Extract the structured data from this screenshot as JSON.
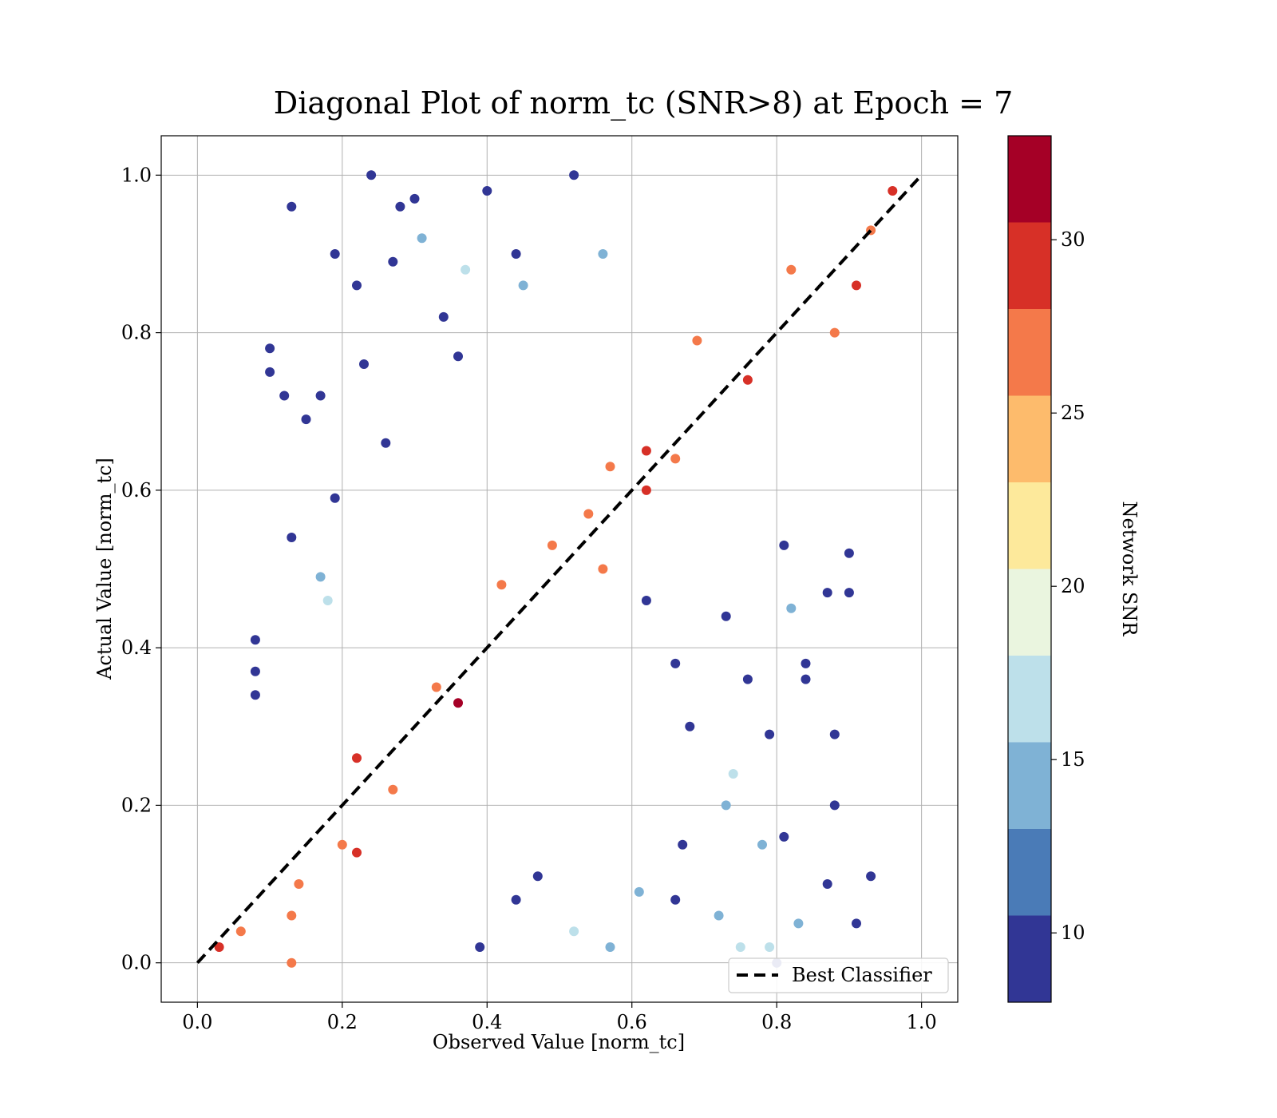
{
  "chart_data": {
    "type": "scatter",
    "title": "Diagonal Plot of norm_tc (SNR>8) at Epoch = 7",
    "xlabel": "Observed Value [norm_tc]",
    "ylabel": "Actual Value [norm_tc]",
    "xlim": [
      -0.05,
      1.05
    ],
    "ylim": [
      -0.05,
      1.05
    ],
    "xticks": [
      "0.0",
      "0.2",
      "0.4",
      "0.6",
      "0.8",
      "1.0"
    ],
    "yticks": [
      "0.0",
      "0.2",
      "0.4",
      "0.6",
      "0.8",
      "1.0"
    ],
    "grid": true,
    "legend": {
      "label": "Best Classifier",
      "placement": "lower-right"
    },
    "reference_line": {
      "name": "Best Classifier",
      "x": [
        0,
        1
      ],
      "y": [
        0,
        1
      ],
      "style": "dashed",
      "color": "#000000"
    },
    "colorbar": {
      "label": "Network SNR",
      "range": [
        8,
        33
      ],
      "ticks": [
        "10",
        "15",
        "20",
        "25",
        "30"
      ],
      "bins": [
        {
          "from": 8,
          "to": 10.5,
          "color": "#313695"
        },
        {
          "from": 10.5,
          "to": 13,
          "color": "#4a7bb7"
        },
        {
          "from": 13,
          "to": 15.5,
          "color": "#7fb2d5"
        },
        {
          "from": 15.5,
          "to": 18,
          "color": "#bde0ea"
        },
        {
          "from": 18,
          "to": 20.5,
          "color": "#eaf5df"
        },
        {
          "from": 20.5,
          "to": 23,
          "color": "#fde99b"
        },
        {
          "from": 23,
          "to": 25.5,
          "color": "#fdbb6c"
        },
        {
          "from": 25.5,
          "to": 28,
          "color": "#f4794a"
        },
        {
          "from": 28,
          "to": 30.5,
          "color": "#d73027"
        },
        {
          "from": 30.5,
          "to": 33,
          "color": "#a50026"
        }
      ]
    },
    "points": [
      {
        "x": 0.13,
        "y": 0.96,
        "snr": 9
      },
      {
        "x": 0.1,
        "y": 0.78,
        "snr": 9
      },
      {
        "x": 0.1,
        "y": 0.75,
        "snr": 9
      },
      {
        "x": 0.12,
        "y": 0.72,
        "snr": 9
      },
      {
        "x": 0.17,
        "y": 0.72,
        "snr": 9
      },
      {
        "x": 0.19,
        "y": 0.9,
        "snr": 9
      },
      {
        "x": 0.22,
        "y": 0.86,
        "snr": 9
      },
      {
        "x": 0.23,
        "y": 0.76,
        "snr": 9
      },
      {
        "x": 0.24,
        "y": 1.0,
        "snr": 9
      },
      {
        "x": 0.27,
        "y": 0.89,
        "snr": 9
      },
      {
        "x": 0.28,
        "y": 0.96,
        "snr": 9
      },
      {
        "x": 0.3,
        "y": 0.97,
        "snr": 9
      },
      {
        "x": 0.31,
        "y": 0.92,
        "snr": 14
      },
      {
        "x": 0.37,
        "y": 0.88,
        "snr": 16
      },
      {
        "x": 0.4,
        "y": 0.98,
        "snr": 9
      },
      {
        "x": 0.44,
        "y": 0.9,
        "snr": 9
      },
      {
        "x": 0.52,
        "y": 1.0,
        "snr": 9
      },
      {
        "x": 0.56,
        "y": 0.9,
        "snr": 14
      },
      {
        "x": 0.13,
        "y": 0.54,
        "snr": 9
      },
      {
        "x": 0.15,
        "y": 0.69,
        "snr": 9
      },
      {
        "x": 0.19,
        "y": 0.59,
        "snr": 9
      },
      {
        "x": 0.08,
        "y": 0.41,
        "snr": 9
      },
      {
        "x": 0.08,
        "y": 0.37,
        "snr": 9
      },
      {
        "x": 0.08,
        "y": 0.34,
        "snr": 9
      },
      {
        "x": 0.17,
        "y": 0.49,
        "snr": 14
      },
      {
        "x": 0.18,
        "y": 0.46,
        "snr": 16
      },
      {
        "x": 0.26,
        "y": 0.66,
        "snr": 9
      },
      {
        "x": 0.34,
        "y": 0.82,
        "snr": 9
      },
      {
        "x": 0.36,
        "y": 0.77,
        "snr": 9
      },
      {
        "x": 0.45,
        "y": 0.86,
        "snr": 14
      },
      {
        "x": 0.62,
        "y": 0.46,
        "snr": 9
      },
      {
        "x": 0.66,
        "y": 0.38,
        "snr": 9
      },
      {
        "x": 0.68,
        "y": 0.3,
        "snr": 9
      },
      {
        "x": 0.73,
        "y": 0.44,
        "snr": 9
      },
      {
        "x": 0.76,
        "y": 0.36,
        "snr": 9
      },
      {
        "x": 0.79,
        "y": 0.29,
        "snr": 9
      },
      {
        "x": 0.82,
        "y": 0.45,
        "snr": 14
      },
      {
        "x": 0.84,
        "y": 0.38,
        "snr": 9
      },
      {
        "x": 0.84,
        "y": 0.36,
        "snr": 9
      },
      {
        "x": 0.88,
        "y": 0.29,
        "snr": 9
      },
      {
        "x": 0.88,
        "y": 0.2,
        "snr": 9
      },
      {
        "x": 0.9,
        "y": 0.52,
        "snr": 9
      },
      {
        "x": 0.9,
        "y": 0.47,
        "snr": 9
      },
      {
        "x": 0.87,
        "y": 0.47,
        "snr": 9
      },
      {
        "x": 0.81,
        "y": 0.53,
        "snr": 9
      },
      {
        "x": 0.93,
        "y": 0.11,
        "snr": 9
      },
      {
        "x": 0.91,
        "y": 0.05,
        "snr": 9
      },
      {
        "x": 0.87,
        "y": 0.1,
        "snr": 9
      },
      {
        "x": 0.83,
        "y": 0.05,
        "snr": 14
      },
      {
        "x": 0.78,
        "y": 0.15,
        "snr": 14
      },
      {
        "x": 0.81,
        "y": 0.16,
        "snr": 9
      },
      {
        "x": 0.8,
        "y": 0.0,
        "snr": 9
      },
      {
        "x": 0.79,
        "y": 0.02,
        "snr": 16
      },
      {
        "x": 0.74,
        "y": 0.24,
        "snr": 16
      },
      {
        "x": 0.73,
        "y": 0.2,
        "snr": 14
      },
      {
        "x": 0.67,
        "y": 0.15,
        "snr": 9
      },
      {
        "x": 0.66,
        "y": 0.08,
        "snr": 9
      },
      {
        "x": 0.72,
        "y": 0.06,
        "snr": 14
      },
      {
        "x": 0.75,
        "y": 0.02,
        "snr": 16
      },
      {
        "x": 0.57,
        "y": 0.02,
        "snr": 14
      },
      {
        "x": 0.44,
        "y": 0.08,
        "snr": 9
      },
      {
        "x": 0.47,
        "y": 0.11,
        "snr": 9
      },
      {
        "x": 0.39,
        "y": 0.02,
        "snr": 9
      },
      {
        "x": 0.52,
        "y": 0.04,
        "snr": 16
      },
      {
        "x": 0.61,
        "y": 0.09,
        "snr": 14
      },
      {
        "x": 0.96,
        "y": 0.98,
        "snr": 29
      },
      {
        "x": 0.91,
        "y": 0.86,
        "snr": 29
      },
      {
        "x": 0.88,
        "y": 0.8,
        "snr": 27
      },
      {
        "x": 0.76,
        "y": 0.74,
        "snr": 29
      },
      {
        "x": 0.69,
        "y": 0.79,
        "snr": 26
      },
      {
        "x": 0.62,
        "y": 0.65,
        "snr": 29
      },
      {
        "x": 0.62,
        "y": 0.6,
        "snr": 28
      },
      {
        "x": 0.57,
        "y": 0.63,
        "snr": 26
      },
      {
        "x": 0.54,
        "y": 0.57,
        "snr": 26
      },
      {
        "x": 0.42,
        "y": 0.48,
        "snr": 26
      },
      {
        "x": 0.36,
        "y": 0.33,
        "snr": 31
      },
      {
        "x": 0.33,
        "y": 0.35,
        "snr": 26
      },
      {
        "x": 0.27,
        "y": 0.22,
        "snr": 26
      },
      {
        "x": 0.22,
        "y": 0.26,
        "snr": 28
      },
      {
        "x": 0.22,
        "y": 0.14,
        "snr": 28
      },
      {
        "x": 0.2,
        "y": 0.15,
        "snr": 26
      },
      {
        "x": 0.14,
        "y": 0.1,
        "snr": 26
      },
      {
        "x": 0.13,
        "y": 0.06,
        "snr": 26
      },
      {
        "x": 0.03,
        "y": 0.02,
        "snr": 29
      },
      {
        "x": 0.13,
        "y": 0.0,
        "snr": 26
      },
      {
        "x": 0.06,
        "y": 0.04,
        "snr": 26
      },
      {
        "x": 0.49,
        "y": 0.53,
        "snr": 26
      },
      {
        "x": 0.56,
        "y": 0.5,
        "snr": 26
      },
      {
        "x": 0.66,
        "y": 0.64,
        "snr": 26
      },
      {
        "x": 0.82,
        "y": 0.88,
        "snr": 26
      },
      {
        "x": 0.93,
        "y": 0.93,
        "snr": 26
      }
    ]
  }
}
